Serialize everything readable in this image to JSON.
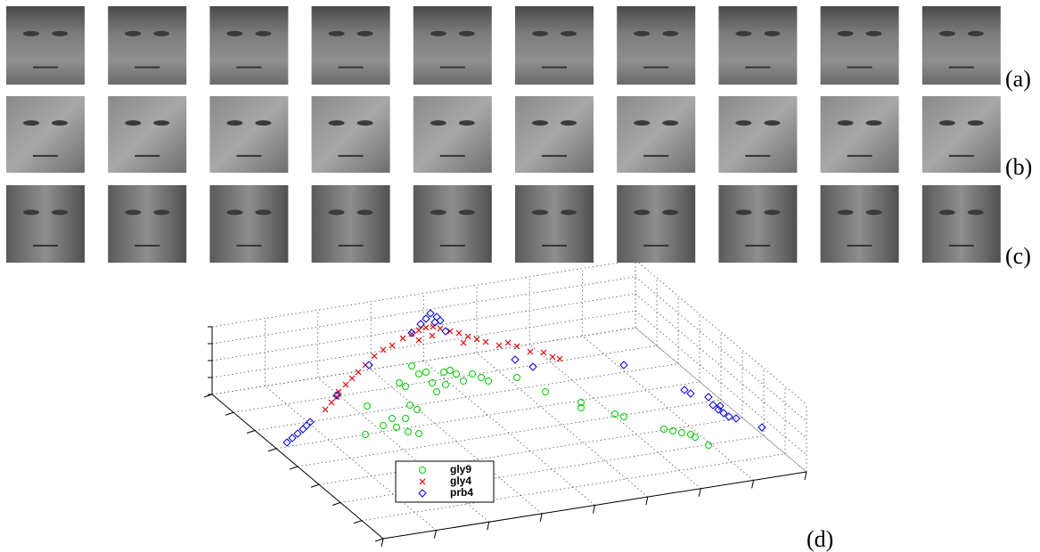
{
  "panels": [
    {
      "label": "(a)"
    },
    {
      "label": "(b)"
    },
    {
      "label": "(c)"
    }
  ],
  "plot": {
    "label": "(d)",
    "legend": [
      {
        "name": "gly9",
        "color": "#00cc00",
        "marker": "circle"
      },
      {
        "name": "gly4",
        "color": "#e00000",
        "marker": "cross"
      },
      {
        "name": "prb4",
        "color": "#0000dd",
        "marker": "diamond"
      }
    ]
  }
}
